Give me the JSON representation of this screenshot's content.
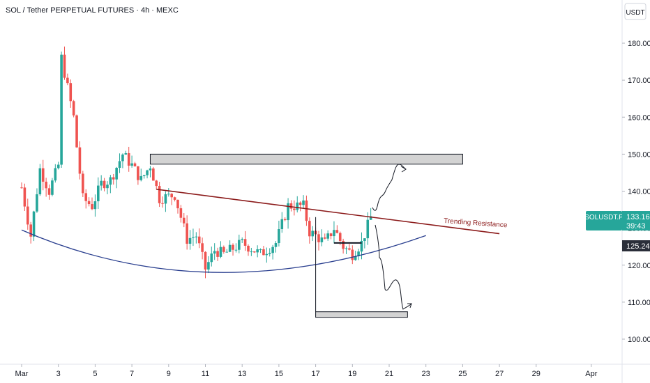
{
  "chart_title": "SOL / Tether PERPETUAL FUTURES · 4h · MEXC",
  "currency_button": "USDT",
  "annotation": "Trending Resistance",
  "price_badge": {
    "symbol": "SOLUSDT.P",
    "price": "133.16",
    "countdown": "39:43",
    "color": "#26a69a"
  },
  "level_badge": {
    "price": "125.24"
  },
  "colors": {
    "up": "#26a69a",
    "down": "#ef5350",
    "resistance": "#8b1a1a",
    "support_curve": "#2a3f8f"
  },
  "chart_data": {
    "type": "candlestick",
    "ylim": [
      93,
      190
    ],
    "y_ticks": [
      100,
      110,
      120,
      130,
      140,
      150,
      160,
      170,
      180
    ],
    "x_ticks": [
      "Mar",
      "3",
      "5",
      "7",
      "9",
      "11",
      "13",
      "15",
      "17",
      "19",
      "21",
      "23",
      "25",
      "27",
      "29",
      "Apr"
    ],
    "x_tick_labels": [
      "Mar",
      "3",
      "5",
      "7",
      "9",
      "11",
      "13",
      "15",
      "17",
      "19",
      "21",
      "23",
      "25",
      "27",
      "29",
      "Apr"
    ],
    "grid": false,
    "price_path_anchors": [
      {
        "date": "Mar 1",
        "price": 141
      },
      {
        "date": "Mar 1 12:00",
        "price": 128
      },
      {
        "date": "Mar 2",
        "price": 146
      },
      {
        "date": "Mar 2 12:00",
        "price": 140
      },
      {
        "date": "Mar 3",
        "price": 147
      },
      {
        "date": "Mar 3 04:00",
        "price": 176
      },
      {
        "date": "Mar 3 12:00",
        "price": 168
      },
      {
        "date": "Mar 3 20:00",
        "price": 160
      },
      {
        "date": "Mar 4",
        "price": 152
      },
      {
        "date": "Mar 4 08:00",
        "price": 138
      },
      {
        "date": "Mar 4 20:00",
        "price": 136
      },
      {
        "date": "Mar 5 08:00",
        "price": 142
      },
      {
        "date": "Mar 5 20:00",
        "price": 143
      },
      {
        "date": "Mar 6 12:00",
        "price": 150
      },
      {
        "date": "Mar 7",
        "price": 147
      },
      {
        "date": "Mar 7 12:00",
        "price": 143
      },
      {
        "date": "Mar 8",
        "price": 147
      },
      {
        "date": "Mar 8 12:00",
        "price": 138
      },
      {
        "date": "Mar 9 08:00",
        "price": 139
      },
      {
        "date": "Mar 10",
        "price": 127
      },
      {
        "date": "Mar 10 12:00",
        "price": 128
      },
      {
        "date": "Mar 11",
        "price": 119
      },
      {
        "date": "Mar 11 12:00",
        "price": 124
      },
      {
        "date": "Mar 12",
        "price": 123
      },
      {
        "date": "Mar 13",
        "price": 126
      },
      {
        "date": "Mar 14",
        "price": 123
      },
      {
        "date": "Mar 14 20:00",
        "price": 126
      },
      {
        "date": "Mar 15 12:00",
        "price": 136
      },
      {
        "date": "Mar 16 08:00",
        "price": 136
      },
      {
        "date": "Mar 16 16:00",
        "price": 129
      },
      {
        "date": "Mar 17",
        "price": 128
      },
      {
        "date": "Mar 17 12:00",
        "price": 126
      },
      {
        "date": "Mar 18",
        "price": 130
      },
      {
        "date": "Mar 18 12:00",
        "price": 125
      },
      {
        "date": "Mar 19",
        "price": 123
      },
      {
        "date": "Mar 19 12:00",
        "price": 126
      },
      {
        "date": "Mar 20",
        "price": 133
      }
    ],
    "zones": [
      {
        "name": "upper zone",
        "x_start": "Mar 8",
        "x_end": "Mar 25",
        "y_low": 147.3,
        "y_high": 150
      },
      {
        "name": "lower zone",
        "x_start": "Mar 17",
        "x_end": "Mar 22",
        "y_low": 105.9,
        "y_high": 107.4
      }
    ],
    "lines": [
      {
        "name": "Trending Resistance",
        "from": {
          "x": "Mar 8 08:00",
          "y": 140.5
        },
        "to": {
          "x": "Mar 27",
          "y": 128.5
        }
      },
      {
        "name": "support curve",
        "from": {
          "x": "Mar 1",
          "y": 129.5
        },
        "to": {
          "x": "Mar 23",
          "y": 128
        }
      }
    ]
  }
}
